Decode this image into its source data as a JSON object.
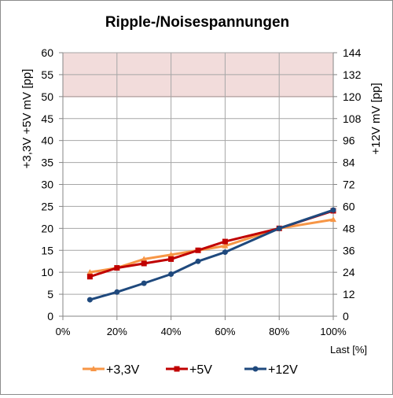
{
  "chart_data": {
    "type": "line",
    "title": "Ripple-/Noisespannungen",
    "xlabel": "Last [%]",
    "ylabel_left": "+3,3V  +5V        mV [pp]",
    "ylabel_right": "+12V        mV [pp]",
    "x_ticks": [
      "0%",
      "20%",
      "40%",
      "60%",
      "80%",
      "100%"
    ],
    "x_range": [
      0,
      100
    ],
    "y_left_range": [
      0,
      60
    ],
    "y_left_ticks": [
      "0",
      "5",
      "10",
      "15",
      "20",
      "25",
      "30",
      "35",
      "40",
      "45",
      "50",
      "55",
      "60"
    ],
    "y_right_range": [
      0,
      144
    ],
    "y_right_ticks": [
      "0",
      "12",
      "24",
      "36",
      "48",
      "60",
      "72",
      "84",
      "96",
      "108",
      "120",
      "132",
      "144"
    ],
    "limit_band_left": [
      50,
      60
    ],
    "grid": true,
    "legend_position": "bottom",
    "series": [
      {
        "name": "+3,3V",
        "axis": "left",
        "color": "#f79646",
        "marker": "triangle",
        "x": [
          10,
          20,
          30,
          40,
          50,
          60,
          80,
          100
        ],
        "y": [
          10,
          11,
          13,
          14,
          15,
          16,
          20,
          22
        ]
      },
      {
        "name": "+5V",
        "axis": "left",
        "color": "#c00000",
        "marker": "square",
        "x": [
          10,
          20,
          30,
          40,
          50,
          60,
          80,
          100
        ],
        "y": [
          9,
          11,
          12,
          13,
          15,
          17,
          20,
          24
        ]
      },
      {
        "name": "+12V",
        "axis": "right",
        "color": "#1f497d",
        "marker": "circle",
        "x": [
          10,
          20,
          30,
          40,
          50,
          60,
          80,
          100
        ],
        "y": [
          9,
          13.2,
          18,
          23,
          30,
          35,
          48,
          58
        ]
      }
    ],
    "colors": {
      "band": "#f2dcdb",
      "band_border": "#c0504d",
      "grid": "#a6a6a6",
      "axis": "#868686"
    }
  }
}
